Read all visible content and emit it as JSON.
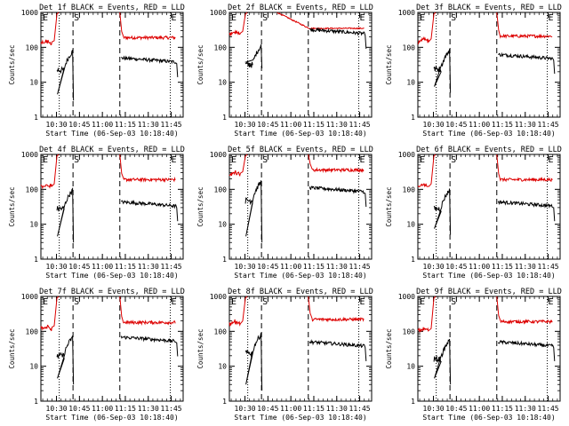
{
  "colors": {
    "events": "#000000",
    "lld": "#dd0000",
    "axes": "#000000",
    "background": "#ffffff"
  },
  "chart_data": {
    "type": "line",
    "layout": "3x3 grid",
    "shared": {
      "xlabel": "Start Time (06-Sep-03 10:18:40)",
      "ylabel": "Counts/sec",
      "yscale": "log",
      "ylim": [
        1,
        1000
      ],
      "yticks": [
        1,
        10,
        100,
        1000
      ],
      "ytick_labels": [
        "1",
        "10",
        "100",
        "1000"
      ],
      "xlim_minutes": [
        10.33,
        11.88
      ],
      "xticks": [
        "10:30",
        "10:45",
        "11:00",
        "11:15",
        "11:30",
        "11:45"
      ],
      "xtick_minutes": [
        10.5,
        10.75,
        11.0,
        11.25,
        11.5,
        11.75
      ],
      "markers": [
        {
          "label": "E",
          "time_min": 10.33,
          "style": "solid"
        },
        {
          "label": "",
          "time_min": 10.53,
          "style": "dotted"
        },
        {
          "label": "S",
          "time_min": 10.68,
          "style": "dashed"
        },
        {
          "label": "",
          "time_min": 11.19,
          "style": "dashed"
        },
        {
          "label": "E",
          "time_min": 11.74,
          "style": "dotted"
        }
      ],
      "series_names": [
        "Events",
        "LLD"
      ]
    },
    "panels": [
      {
        "title": "Det 1f BLACK = Events, RED = LLD",
        "events_pre": 28,
        "events_post": 40,
        "lld_pre": 140,
        "lld_post": 190,
        "events_min": 3
      },
      {
        "title": "Det 2f BLACK = Events, RED = LLD",
        "events_pre": 40,
        "events_post": 260,
        "lld_pre": 260,
        "lld_post": 350,
        "events_min": 25,
        "lld_slow_decay": true
      },
      {
        "title": "Det 3f BLACK = Events, RED = LLD",
        "events_pre": 30,
        "events_post": 50,
        "lld_pre": 160,
        "lld_post": 210,
        "events_min": 5
      },
      {
        "title": "Det 4f BLACK = Events, RED = LLD",
        "events_pre": 35,
        "events_post": 35,
        "lld_pre": 130,
        "lld_post": 190,
        "events_min": 3
      },
      {
        "title": "Det 5f BLACK = Events, RED = LLD",
        "events_pre": 60,
        "events_post": 90,
        "lld_pre": 290,
        "lld_post": 360,
        "events_min": 3
      },
      {
        "title": "Det 6f BLACK = Events, RED = LLD",
        "events_pre": 35,
        "events_post": 35,
        "lld_pre": 130,
        "lld_post": 190,
        "events_min": 5
      },
      {
        "title": "Det 7f BLACK = Events, RED = LLD",
        "events_pre": 25,
        "events_post": 55,
        "lld_pre": 130,
        "lld_post": 180,
        "events_min": 3
      },
      {
        "title": "Det 8f BLACK = Events, RED = LLD",
        "events_pre": 30,
        "events_post": 40,
        "lld_pre": 180,
        "lld_post": 220,
        "events_min": 2
      },
      {
        "title": "Det 9f BLACK = Events, RED = LLD",
        "events_pre": 20,
        "events_post": 40,
        "lld_pre": 110,
        "lld_post": 190,
        "events_min": 3
      }
    ]
  }
}
